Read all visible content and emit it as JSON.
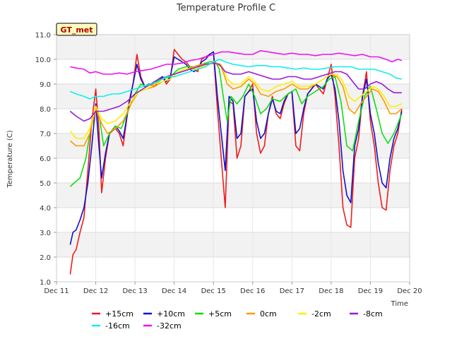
{
  "chart_data": {
    "type": "line",
    "title": "Temperature Profile C",
    "xlabel": "Time",
    "ylabel": "Temperature (C)",
    "badge": "GT_met",
    "xlim": [
      11,
      20
    ],
    "ylim": [
      1.0,
      11.0
    ],
    "x_ticks": [
      {
        "value": 11,
        "label": "Dec 11"
      },
      {
        "value": 12,
        "label": "Dec 12"
      },
      {
        "value": 13,
        "label": "Dec 13"
      },
      {
        "value": 14,
        "label": "Dec 14"
      },
      {
        "value": 15,
        "label": "Dec 15"
      },
      {
        "value": 16,
        "label": "Dec 16"
      },
      {
        "value": 17,
        "label": "Dec 17"
      },
      {
        "value": 18,
        "label": "Dec 18"
      },
      {
        "value": 19,
        "label": "Dec 19"
      },
      {
        "value": 20,
        "label": "Dec 20"
      }
    ],
    "y_ticks": [
      {
        "value": 1.0,
        "label": "1.0"
      },
      {
        "value": 2.0,
        "label": "2.0"
      },
      {
        "value": 3.0,
        "label": "3.0"
      },
      {
        "value": 4.0,
        "label": "4.0"
      },
      {
        "value": 5.0,
        "label": "5.0"
      },
      {
        "value": 6.0,
        "label": "6.0"
      },
      {
        "value": 7.0,
        "label": "7.0"
      },
      {
        "value": 8.0,
        "label": "8.0"
      },
      {
        "value": 9.0,
        "label": "9.0"
      },
      {
        "value": 10.0,
        "label": "10.0"
      },
      {
        "value": 11.0,
        "label": "11.0"
      }
    ],
    "grid": true,
    "legend_position": "bottom",
    "series": [
      {
        "name": "+15cm",
        "color": "#ee1c1c",
        "x": [
          11.35,
          11.42,
          11.5,
          11.6,
          11.7,
          11.8,
          11.9,
          12.0,
          12.08,
          12.15,
          12.25,
          12.35,
          12.5,
          12.6,
          12.7,
          12.85,
          12.95,
          13.05,
          13.15,
          13.25,
          13.35,
          13.5,
          13.6,
          13.7,
          13.8,
          13.9,
          14.0,
          14.1,
          14.2,
          14.3,
          14.4,
          14.5,
          14.6,
          14.7,
          14.8,
          14.9,
          15.0,
          15.1,
          15.2,
          15.3,
          15.4,
          15.5,
          15.6,
          15.7,
          15.8,
          15.9,
          16.0,
          16.1,
          16.2,
          16.3,
          16.4,
          16.5,
          16.6,
          16.7,
          16.8,
          16.9,
          17.0,
          17.1,
          17.2,
          17.3,
          17.4,
          17.5,
          17.6,
          17.7,
          17.8,
          17.9,
          18.0,
          18.1,
          18.2,
          18.3,
          18.4,
          18.5,
          18.6,
          18.7,
          18.8,
          18.9,
          19.0,
          19.1,
          19.2,
          19.3,
          19.4,
          19.5,
          19.6,
          19.7,
          19.8
        ],
        "y": [
          1.3,
          2.1,
          2.3,
          3.0,
          3.6,
          5.5,
          7.5,
          8.8,
          7.2,
          4.6,
          6.0,
          7.0,
          7.2,
          7.0,
          6.5,
          8.3,
          9.0,
          10.2,
          9.3,
          8.9,
          9.0,
          8.9,
          9.1,
          9.3,
          9.0,
          9.2,
          10.4,
          10.2,
          10.0,
          9.9,
          9.7,
          9.6,
          9.5,
          10.0,
          10.1,
          10.2,
          10.3,
          8.0,
          6.0,
          4.0,
          8.3,
          8.2,
          6.0,
          6.5,
          8.5,
          8.7,
          9.0,
          7.0,
          6.2,
          6.5,
          7.8,
          8.5,
          7.8,
          7.6,
          8.2,
          8.6,
          8.7,
          6.5,
          6.3,
          7.8,
          8.6,
          8.8,
          9.0,
          8.8,
          8.6,
          9.2,
          9.8,
          8.5,
          6.5,
          4.0,
          3.3,
          3.2,
          6.0,
          6.8,
          8.5,
          9.5,
          7.5,
          6.5,
          5.0,
          4.0,
          3.9,
          5.5,
          6.5,
          7.0,
          8.0
        ]
      },
      {
        "name": "+10cm",
        "color": "#1010cc",
        "x": [
          11.35,
          11.42,
          11.5,
          11.6,
          11.7,
          11.8,
          11.9,
          12.0,
          12.08,
          12.15,
          12.25,
          12.35,
          12.5,
          12.6,
          12.7,
          12.85,
          12.95,
          13.05,
          13.15,
          13.25,
          13.35,
          13.5,
          13.6,
          13.7,
          13.8,
          13.9,
          14.0,
          14.1,
          14.2,
          14.3,
          14.4,
          14.5,
          14.6,
          14.7,
          14.8,
          14.9,
          15.0,
          15.1,
          15.2,
          15.3,
          15.4,
          15.5,
          15.6,
          15.7,
          15.8,
          15.9,
          16.0,
          16.1,
          16.2,
          16.3,
          16.4,
          16.5,
          16.6,
          16.7,
          16.8,
          16.9,
          17.0,
          17.1,
          17.2,
          17.3,
          17.4,
          17.5,
          17.6,
          17.7,
          17.8,
          17.9,
          18.0,
          18.1,
          18.2,
          18.3,
          18.4,
          18.5,
          18.6,
          18.7,
          18.8,
          18.9,
          19.0,
          19.1,
          19.2,
          19.3,
          19.4,
          19.5,
          19.6,
          19.7,
          19.8
        ],
        "y": [
          2.5,
          3.0,
          3.1,
          3.5,
          4.0,
          5.0,
          6.5,
          8.2,
          6.5,
          5.2,
          6.2,
          7.0,
          7.3,
          7.1,
          6.8,
          8.2,
          9.0,
          9.8,
          9.2,
          8.9,
          9.0,
          9.0,
          9.2,
          9.3,
          9.1,
          9.3,
          10.1,
          10.0,
          9.9,
          9.8,
          9.6,
          9.5,
          9.6,
          9.9,
          10.0,
          10.2,
          10.3,
          8.5,
          7.0,
          5.5,
          8.5,
          8.3,
          6.8,
          7.0,
          8.5,
          8.7,
          8.8,
          7.5,
          6.8,
          7.0,
          7.8,
          8.4,
          7.9,
          7.8,
          8.3,
          8.6,
          8.7,
          7.0,
          7.2,
          8.0,
          8.6,
          8.8,
          9.0,
          8.9,
          8.8,
          9.2,
          9.4,
          8.8,
          7.5,
          5.5,
          4.5,
          4.2,
          6.5,
          7.2,
          8.5,
          9.2,
          7.8,
          7.0,
          5.8,
          5.0,
          4.8,
          6.0,
          6.8,
          7.2,
          7.9
        ]
      },
      {
        "name": "+5cm",
        "color": "#11dd11",
        "x": [
          11.35,
          11.45,
          11.6,
          11.75,
          11.9,
          12.0,
          12.1,
          12.2,
          12.35,
          12.5,
          12.65,
          12.8,
          13.0,
          13.15,
          13.3,
          13.5,
          13.7,
          13.9,
          14.1,
          14.3,
          14.5,
          14.7,
          14.9,
          15.05,
          15.15,
          15.25,
          15.35,
          15.45,
          15.6,
          15.75,
          15.9,
          16.05,
          16.2,
          16.35,
          16.5,
          16.7,
          16.9,
          17.1,
          17.25,
          17.4,
          17.6,
          17.8,
          17.95,
          18.1,
          18.25,
          18.4,
          18.55,
          18.7,
          18.85,
          19.0,
          19.15,
          19.3,
          19.45,
          19.6,
          19.8
        ],
        "y": [
          4.85,
          5.0,
          5.2,
          6.0,
          7.5,
          8.0,
          7.6,
          6.5,
          7.0,
          7.3,
          7.2,
          7.8,
          8.6,
          9.0,
          8.9,
          9.1,
          9.2,
          9.3,
          9.6,
          9.7,
          9.7,
          9.8,
          9.9,
          9.9,
          9.6,
          8.5,
          7.5,
          8.5,
          8.2,
          8.5,
          9.0,
          8.5,
          7.8,
          8.0,
          8.4,
          8.3,
          8.6,
          8.8,
          8.2,
          8.5,
          8.7,
          8.9,
          9.2,
          9.3,
          8.3,
          6.5,
          6.3,
          7.5,
          8.5,
          8.9,
          8.0,
          7.0,
          6.6,
          7.0,
          7.8
        ]
      },
      {
        "name": "0cm",
        "color": "#ff9900",
        "x": [
          11.35,
          11.5,
          11.7,
          11.85,
          12.0,
          12.15,
          12.3,
          12.5,
          12.7,
          12.9,
          13.1,
          13.3,
          13.5,
          13.7,
          13.9,
          14.1,
          14.3,
          14.5,
          14.7,
          14.9,
          15.05,
          15.2,
          15.35,
          15.5,
          15.7,
          15.9,
          16.05,
          16.2,
          16.4,
          16.6,
          16.8,
          17.0,
          17.2,
          17.4,
          17.6,
          17.8,
          18.0,
          18.15,
          18.3,
          18.45,
          18.6,
          18.75,
          18.9,
          19.05,
          19.2,
          19.35,
          19.5,
          19.65,
          19.8
        ],
        "y": [
          6.7,
          6.5,
          6.5,
          7.0,
          8.0,
          7.4,
          7.0,
          7.2,
          7.5,
          8.2,
          8.7,
          8.8,
          8.9,
          9.1,
          9.2,
          9.5,
          9.6,
          9.7,
          9.8,
          9.8,
          9.85,
          9.7,
          9.0,
          8.8,
          8.9,
          9.2,
          9.0,
          8.6,
          8.5,
          8.7,
          8.8,
          9.0,
          8.8,
          8.8,
          9.0,
          9.2,
          9.4,
          9.3,
          8.9,
          8.0,
          7.8,
          8.2,
          8.5,
          8.8,
          8.7,
          8.3,
          7.8,
          7.8,
          8.0
        ]
      },
      {
        "name": "-2cm",
        "color": "#ffee00",
        "x": [
          11.35,
          11.5,
          11.7,
          11.85,
          12.0,
          12.15,
          12.3,
          12.5,
          12.7,
          12.9,
          13.1,
          13.3,
          13.5,
          13.7,
          13.9,
          14.1,
          14.3,
          14.5,
          14.7,
          14.9,
          15.05,
          15.2,
          15.35,
          15.5,
          15.7,
          15.9,
          16.05,
          16.2,
          16.4,
          16.6,
          16.8,
          17.0,
          17.2,
          17.4,
          17.6,
          17.8,
          18.0,
          18.15,
          18.3,
          18.45,
          18.6,
          18.75,
          18.9,
          19.05,
          19.2,
          19.35,
          19.5,
          19.65,
          19.8
        ],
        "y": [
          7.1,
          6.8,
          6.8,
          7.2,
          8.1,
          7.6,
          7.4,
          7.5,
          7.8,
          8.3,
          8.7,
          8.8,
          9.0,
          9.1,
          9.2,
          9.5,
          9.6,
          9.6,
          9.7,
          9.8,
          9.85,
          9.8,
          9.2,
          9.0,
          9.0,
          9.3,
          9.1,
          8.8,
          8.7,
          8.9,
          9.0,
          9.1,
          8.9,
          8.9,
          9.0,
          9.2,
          9.4,
          9.4,
          9.1,
          8.5,
          8.3,
          8.5,
          8.7,
          8.9,
          8.8,
          8.5,
          8.1,
          8.1,
          8.2
        ]
      },
      {
        "name": "-8cm",
        "color": "#9a1ad8",
        "x": [
          11.35,
          11.5,
          11.7,
          11.85,
          12.0,
          12.2,
          12.4,
          12.6,
          12.8,
          13.0,
          13.2,
          13.4,
          13.6,
          13.8,
          14.0,
          14.2,
          14.4,
          14.6,
          14.8,
          15.0,
          15.15,
          15.3,
          15.5,
          15.7,
          15.9,
          16.1,
          16.3,
          16.5,
          16.7,
          16.9,
          17.1,
          17.3,
          17.5,
          17.7,
          17.9,
          18.1,
          18.25,
          18.4,
          18.55,
          18.7,
          18.85,
          19.0,
          19.15,
          19.3,
          19.45,
          19.6,
          19.8
        ],
        "y": [
          7.9,
          7.7,
          7.5,
          7.6,
          7.9,
          7.9,
          8.0,
          8.1,
          8.3,
          8.6,
          8.8,
          9.0,
          9.2,
          9.3,
          9.4,
          9.5,
          9.6,
          9.7,
          9.8,
          9.85,
          9.8,
          9.5,
          9.4,
          9.4,
          9.5,
          9.4,
          9.3,
          9.2,
          9.2,
          9.3,
          9.3,
          9.2,
          9.2,
          9.3,
          9.4,
          9.5,
          9.5,
          9.4,
          9.1,
          8.8,
          8.8,
          9.0,
          9.1,
          9.0,
          8.8,
          8.65,
          8.65
        ]
      },
      {
        "name": "-16cm",
        "color": "#11eeee",
        "x": [
          11.35,
          11.5,
          11.7,
          11.85,
          12.0,
          12.2,
          12.4,
          12.6,
          12.8,
          13.0,
          13.2,
          13.4,
          13.6,
          13.8,
          14.0,
          14.2,
          14.4,
          14.6,
          14.8,
          15.0,
          15.15,
          15.3,
          15.5,
          15.7,
          15.9,
          16.1,
          16.3,
          16.5,
          16.7,
          16.9,
          17.1,
          17.3,
          17.5,
          17.7,
          17.9,
          18.1,
          18.3,
          18.5,
          18.7,
          18.9,
          19.1,
          19.3,
          19.5,
          19.65,
          19.8
        ],
        "y": [
          8.7,
          8.6,
          8.5,
          8.4,
          8.5,
          8.5,
          8.6,
          8.6,
          8.7,
          8.8,
          8.9,
          9.0,
          9.1,
          9.3,
          9.3,
          9.4,
          9.5,
          9.6,
          9.7,
          9.9,
          10.0,
          9.9,
          9.8,
          9.75,
          9.7,
          9.75,
          9.75,
          9.7,
          9.7,
          9.65,
          9.6,
          9.65,
          9.6,
          9.6,
          9.65,
          9.7,
          9.7,
          9.7,
          9.6,
          9.6,
          9.6,
          9.5,
          9.4,
          9.25,
          9.2
        ]
      },
      {
        "name": "-32cm",
        "color": "#ee11ee",
        "x": [
          11.35,
          11.5,
          11.7,
          11.85,
          12.0,
          12.2,
          12.4,
          12.6,
          12.8,
          13.0,
          13.2,
          13.4,
          13.6,
          13.8,
          14.0,
          14.2,
          14.4,
          14.6,
          14.8,
          15.0,
          15.2,
          15.4,
          15.6,
          15.8,
          16.0,
          16.2,
          16.4,
          16.6,
          16.8,
          17.0,
          17.2,
          17.4,
          17.6,
          17.8,
          18.0,
          18.2,
          18.4,
          18.6,
          18.8,
          19.0,
          19.2,
          19.4,
          19.55,
          19.7,
          19.8
        ],
        "y": [
          9.7,
          9.65,
          9.6,
          9.45,
          9.5,
          9.4,
          9.4,
          9.45,
          9.4,
          9.5,
          9.55,
          9.6,
          9.7,
          9.8,
          9.8,
          9.85,
          9.95,
          10.0,
          10.1,
          10.2,
          10.3,
          10.3,
          10.25,
          10.2,
          10.2,
          10.35,
          10.3,
          10.25,
          10.2,
          10.25,
          10.2,
          10.2,
          10.15,
          10.2,
          10.2,
          10.25,
          10.2,
          10.15,
          10.2,
          10.1,
          10.1,
          10.0,
          9.9,
          10.0,
          9.95
        ]
      }
    ]
  }
}
